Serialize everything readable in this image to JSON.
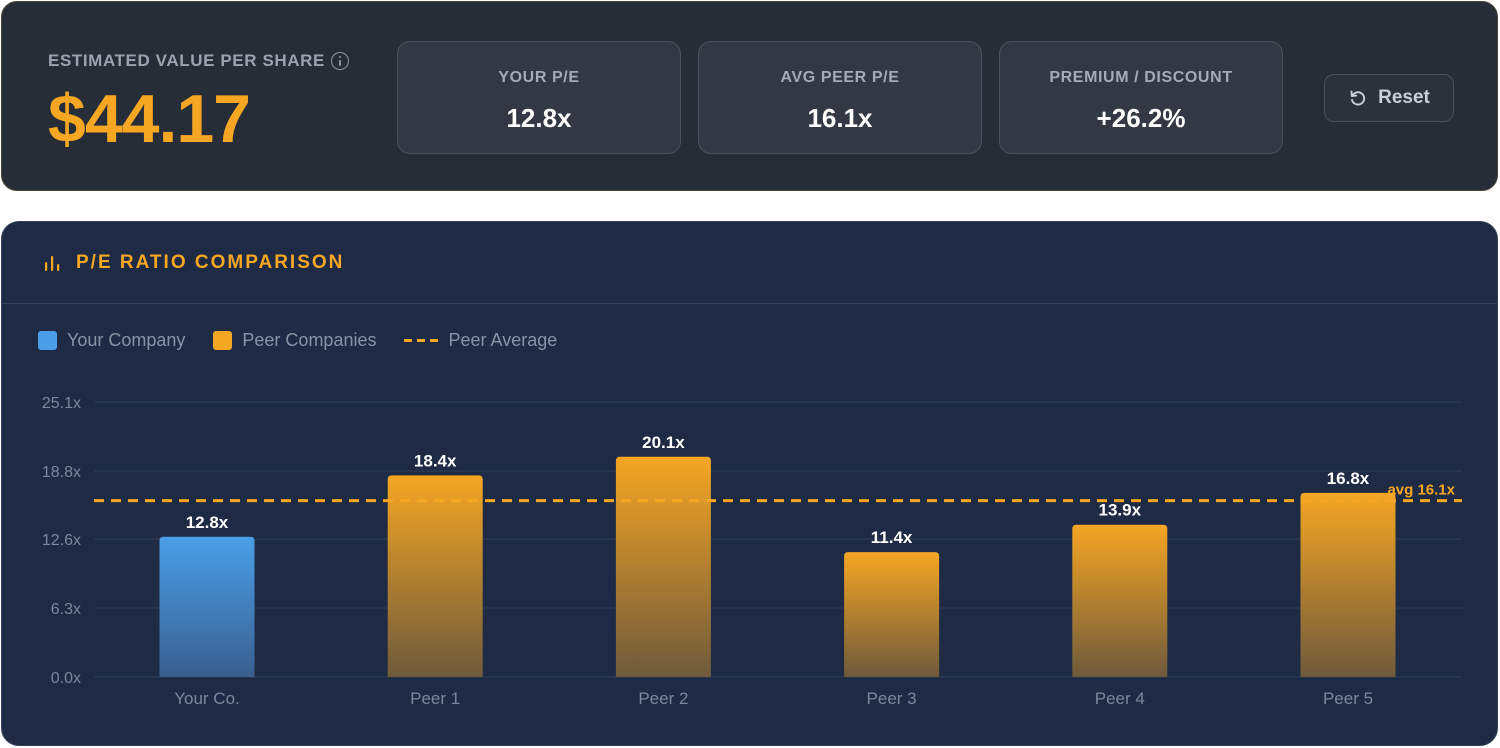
{
  "summary": {
    "estimated_label": "ESTIMATED VALUE PER SHARE",
    "estimated_value": "$44.17",
    "stats": [
      {
        "label": "YOUR P/E",
        "value": "12.8x"
      },
      {
        "label": "AVG PEER P/E",
        "value": "16.1x"
      },
      {
        "label": "PREMIUM / DISCOUNT",
        "value": "+26.2%"
      }
    ],
    "reset_label": "Reset"
  },
  "chart_panel": {
    "title": "P/E RATIO COMPARISON",
    "legend": {
      "your_company": "Your Company",
      "peer_companies": "Peer Companies",
      "peer_average": "Peer Average"
    }
  },
  "chart_data": {
    "type": "bar",
    "title": "P/E RATIO COMPARISON",
    "categories": [
      "Your Co.",
      "Peer 1",
      "Peer 2",
      "Peer 3",
      "Peer 4",
      "Peer 5"
    ],
    "values": [
      12.8,
      18.4,
      20.1,
      11.4,
      13.9,
      16.8
    ],
    "value_labels": [
      "12.8x",
      "18.4x",
      "20.1x",
      "11.4x",
      "13.9x",
      "16.8x"
    ],
    "series_groups": [
      "Your Company",
      "Peer Companies",
      "Peer Companies",
      "Peer Companies",
      "Peer Companies",
      "Peer Companies"
    ],
    "ylim": [
      0,
      25.1
    ],
    "yticks": [
      0,
      6.3,
      12.6,
      18.8,
      25.1
    ],
    "ytick_labels": [
      "0.0x",
      "6.3x",
      "12.6x",
      "18.8x",
      "25.1x"
    ],
    "average": {
      "value": 16.1,
      "label": "avg 16.1x"
    },
    "grid": true,
    "legend_position": "top-left",
    "colors": {
      "your_company": "#4a9fe8",
      "peer": "#f5a623",
      "average_line": "#f5a623"
    }
  }
}
